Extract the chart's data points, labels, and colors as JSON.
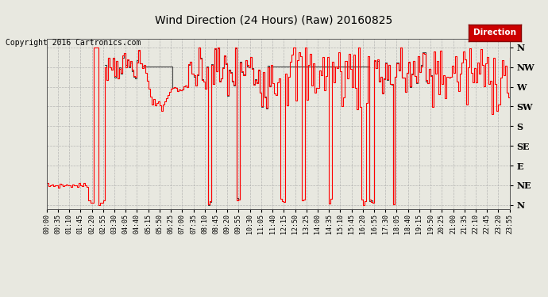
{
  "title": "Wind Direction (24 Hours) (Raw) 20160825",
  "copyright": "Copyright 2016 Cartronics.com",
  "legend_label": "Direction",
  "legend_bg": "#cc0000",
  "line_color_red": "#ff0000",
  "line_color_gray": "#333333",
  "background_color": "#e8e8e0",
  "grid_color": "#aaaaaa",
  "ytick_labels": [
    "N",
    "NW",
    "W",
    "SW",
    "S",
    "SE",
    "E",
    "NE",
    "N"
  ],
  "ytick_values": [
    360,
    315,
    270,
    225,
    180,
    135,
    90,
    45,
    0
  ],
  "ylim": [
    -10,
    380
  ],
  "title_fontsize": 10,
  "copyright_fontsize": 7
}
